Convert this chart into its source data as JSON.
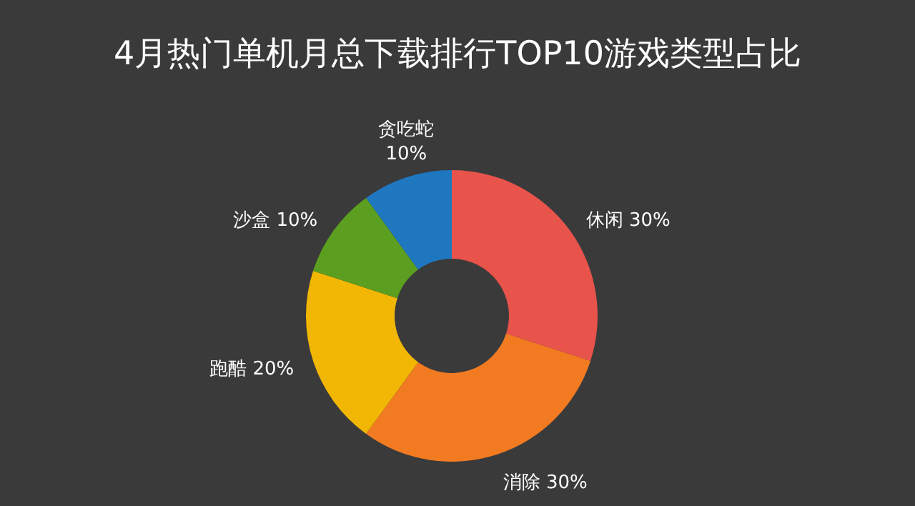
{
  "chart_data": {
    "type": "donut",
    "title": "4月热门单机月总下载排行TOP10游戏类型占比",
    "categories": [
      "休闲",
      "消除",
      "跑酷",
      "沙盒",
      "贪吃蛇"
    ],
    "values": [
      30,
      30,
      20,
      10,
      10
    ],
    "value_labels": [
      "30%",
      "30%",
      "20%",
      "10%",
      "10%"
    ],
    "colors": [
      "#e8534b",
      "#f27b22",
      "#f2b705",
      "#5c9e1f",
      "#1f77bf"
    ]
  }
}
